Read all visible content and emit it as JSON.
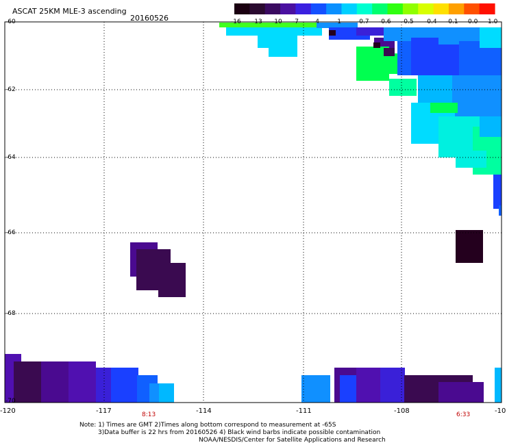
{
  "header": {
    "title": "ASCAT 25KM MLE-3 ascending",
    "date": "20160526"
  },
  "colorbar": {
    "labels": [
      "-16",
      "-13",
      "-10",
      "-7",
      "-4",
      "-1",
      "-0.7",
      "-0.6",
      "-0.5",
      "-0.4",
      "-0.1",
      "0.0",
      "1.0"
    ],
    "colors": [
      "#1a0010",
      "#2a0a30",
      "#3a0a60",
      "#4a10a0",
      "#3a20e0",
      "#1450ff",
      "#0a90ff",
      "#00d0ff",
      "#00ffd0",
      "#00ff70",
      "#30ff10",
      "#90ff00",
      "#d8ff00",
      "#ffe000",
      "#ffa000",
      "#ff5000",
      "#ff1000"
    ]
  },
  "axes": {
    "y_labels": [
      "-60",
      "-62",
      "-64",
      "-66",
      "-68",
      "-70"
    ],
    "x_labels": [
      "-120",
      "-117",
      "-114",
      "-111",
      "-108",
      "-10"
    ]
  },
  "times": [
    "8:13",
    "6:33"
  ],
  "notes": {
    "line1": "Note: 1) Times are GMT 2)Times along bottom correspond to measurement at -65S",
    "line2": "3)Data buffer is 22 hrs from 20160526 4) Black wind barbs indicate possible contamination",
    "line3": "NOAA/NESDIS/Center for Satellite Applications and Research"
  }
}
